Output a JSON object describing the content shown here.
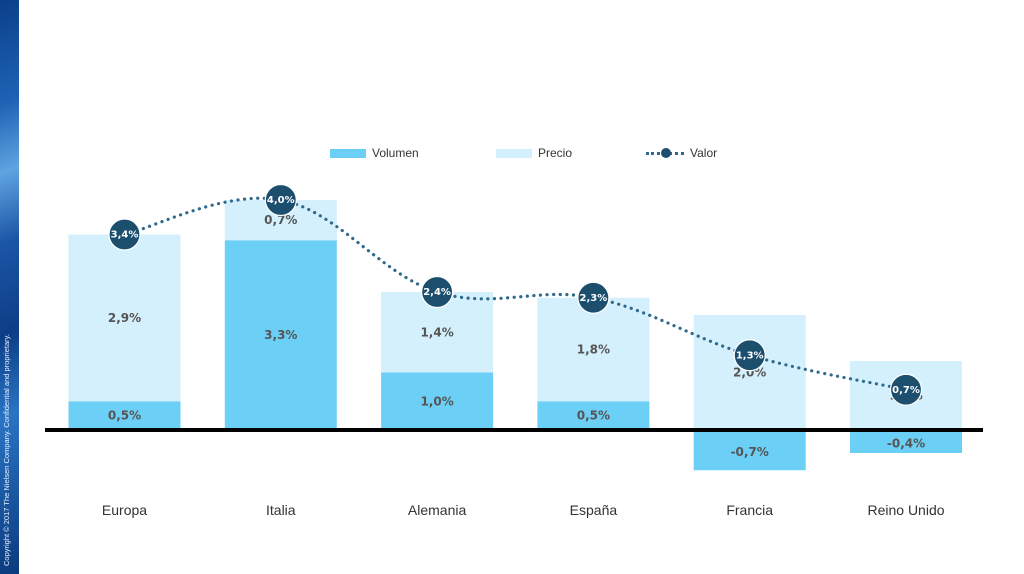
{
  "copyright": "Copyright © 2017 The Nielsen Company. Confidential and proprietary.",
  "legend": {
    "volumen": "Volumen",
    "precio": "Precio",
    "valor": "Valor"
  },
  "colors": {
    "volumen": "#6ccff6",
    "precio": "#d4f0fc",
    "valor_line": "#2f6a8c",
    "valor_marker": "#1c4f6e",
    "baseline": "#000000",
    "left_strip": "#1e63b5"
  },
  "chart_data": {
    "type": "bar",
    "stacked": true,
    "categories": [
      "Europa",
      "Italia",
      "Alemania",
      "España",
      "Francia",
      "Reino Unido"
    ],
    "series": [
      {
        "name": "Volumen",
        "kind": "bar",
        "values": [
          0.5,
          3.3,
          1.0,
          0.5,
          -0.7,
          -0.4
        ],
        "labels": [
          "0,5%",
          "3,3%",
          "1,0%",
          "0,5%",
          "-0,7%",
          "-0,4%"
        ]
      },
      {
        "name": "Precio",
        "kind": "bar",
        "values": [
          2.9,
          0.7,
          1.4,
          1.8,
          2.0,
          1.2
        ],
        "labels": [
          "2,9%",
          "0,7%",
          "1,4%",
          "1,8%",
          "2,0%",
          "1,2%"
        ]
      },
      {
        "name": "Valor",
        "kind": "line",
        "style": "dotted",
        "values": [
          3.4,
          4.0,
          2.4,
          2.3,
          1.3,
          0.7
        ],
        "labels": [
          "3,4%",
          "4,0%",
          "2,4%",
          "2,3%",
          "1,3%",
          "0,7%"
        ]
      }
    ],
    "title": "",
    "xlabel": "",
    "ylabel": "",
    "ylim": [
      -0.7,
      4.0
    ],
    "grid": false,
    "legend": "top-center"
  }
}
